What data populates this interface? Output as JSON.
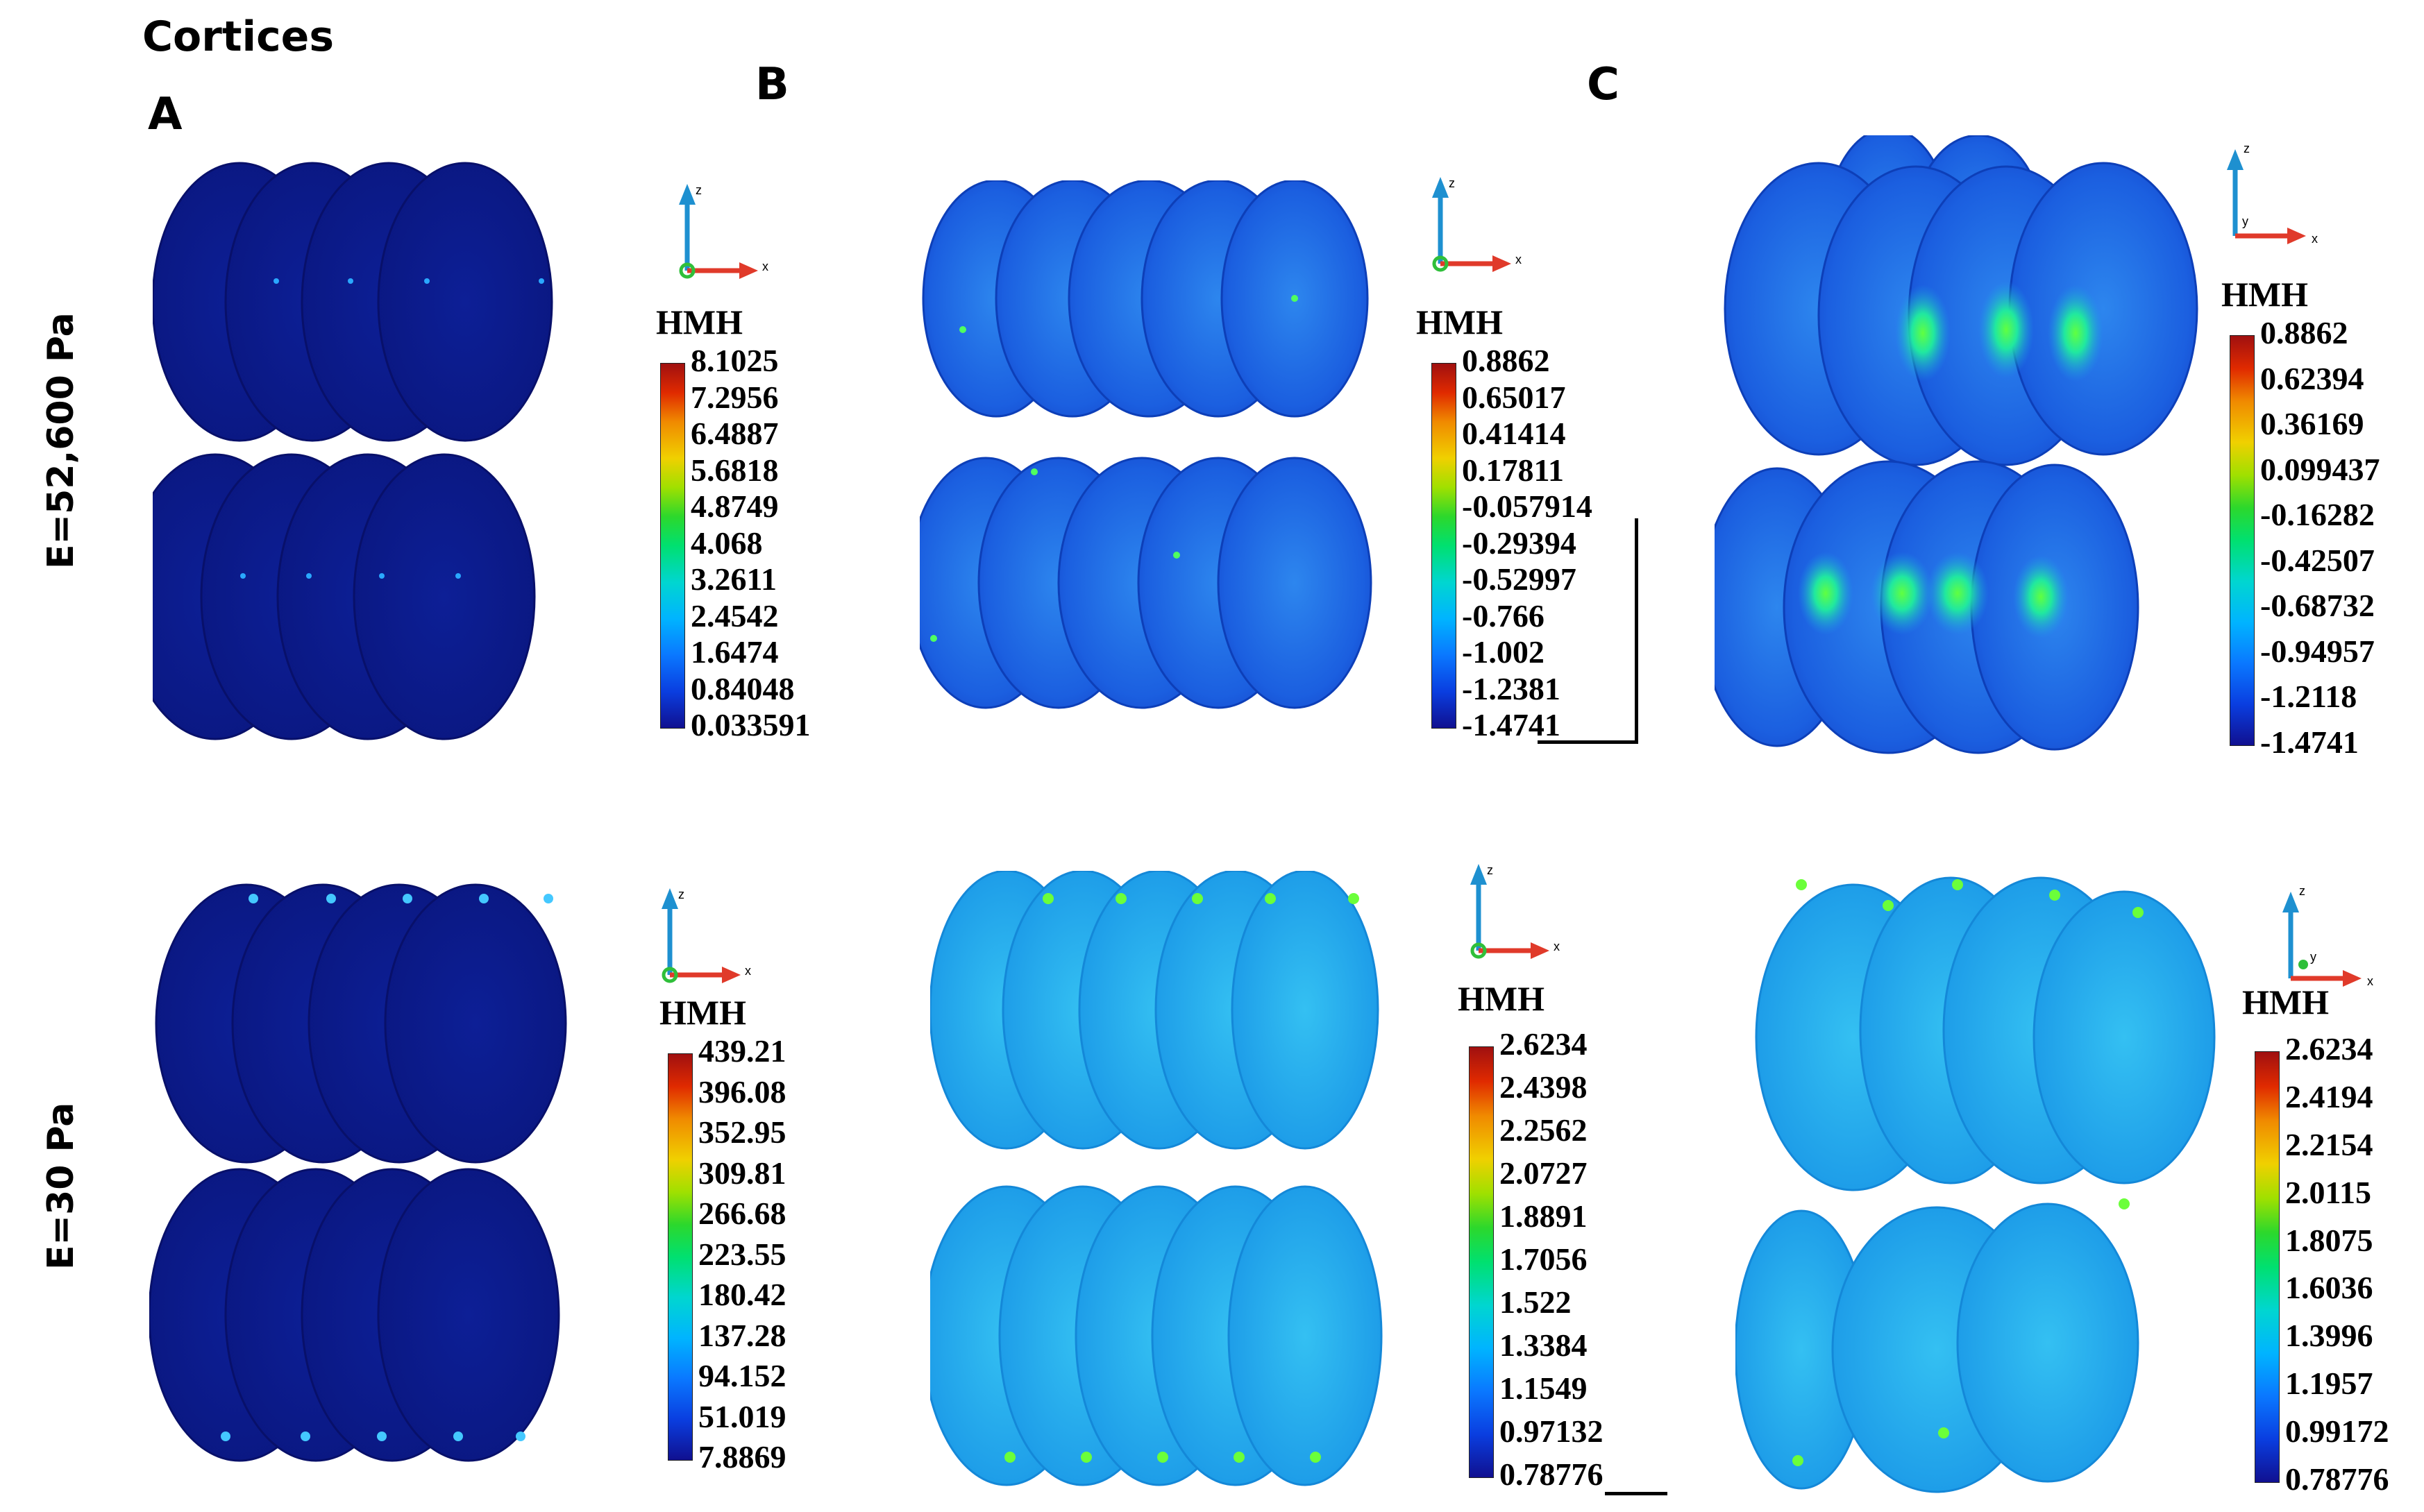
{
  "figure": {
    "title": "Cortices",
    "panel_labels": [
      "A",
      "B",
      "C"
    ],
    "row_labels": [
      "E=52,600 Pa",
      "E=30  Pa"
    ]
  },
  "axis_glyph": {
    "z": "z",
    "x": "x",
    "y": "y"
  },
  "legends": [
    {
      "id": "top-a",
      "title": "HMH",
      "values": [
        "8.1025",
        "7.2956",
        "6.4887",
        "5.6818",
        "4.8749",
        "4.068",
        "3.2611",
        "2.4542",
        "1.6474",
        "0.84048",
        "0.033591"
      ]
    },
    {
      "id": "top-b",
      "title": "HMH",
      "values": [
        "0.8862",
        "0.65017",
        "0.41414",
        "0.17811",
        "-0.057914",
        "-0.29394",
        "-0.52997",
        "-0.766",
        "-1.002",
        "-1.2381",
        "-1.4741"
      ]
    },
    {
      "id": "top-c",
      "title": "HMH",
      "values": [
        "0.8862",
        "0.62394",
        "0.36169",
        "0.099437",
        "-0.16282",
        "-0.42507",
        "-0.68732",
        "-0.94957",
        "-1.2118",
        "-1.4741"
      ]
    },
    {
      "id": "bot-a",
      "title": "HMH",
      "values": [
        "439.21",
        "396.08",
        "352.95",
        "309.81",
        "266.68",
        "223.55",
        "180.42",
        "137.28",
        "94.152",
        "51.019",
        "7.8869"
      ]
    },
    {
      "id": "bot-b",
      "title": "HMH",
      "values": [
        "2.6234",
        "2.4398",
        "2.2562",
        "2.0727",
        "1.8891",
        "1.7056",
        "1.522",
        "1.3384",
        "1.1549",
        "0.97132",
        "0.78776"
      ]
    },
    {
      "id": "bot-c",
      "title": "HMH",
      "values": [
        "2.6234",
        "2.4194",
        "2.2154",
        "2.0115",
        "1.8075",
        "1.6036",
        "1.3996",
        "1.1957",
        "0.99172",
        "0.78776"
      ]
    }
  ],
  "colors": {
    "dark_blue": "#0a1a8c",
    "mid_blue": "#1a5adf",
    "light_blue": "#1d9ce8",
    "hot_green": "#3af04a",
    "axis_z": "#1e90d0",
    "axis_x": "#e03a2a",
    "axis_y": "#2fbf3a"
  }
}
